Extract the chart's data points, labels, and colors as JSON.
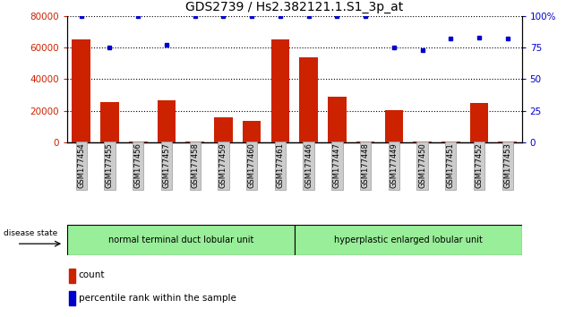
{
  "title": "GDS2739 / Hs2.382121.1.S1_3p_at",
  "samples": [
    "GSM177454",
    "GSM177455",
    "GSM177456",
    "GSM177457",
    "GSM177458",
    "GSM177459",
    "GSM177460",
    "GSM177461",
    "GSM177446",
    "GSM177447",
    "GSM177448",
    "GSM177449",
    "GSM177450",
    "GSM177451",
    "GSM177452",
    "GSM177453"
  ],
  "counts": [
    65000,
    25500,
    900,
    26500,
    900,
    16000,
    13500,
    65000,
    54000,
    29000,
    900,
    20500,
    900,
    900,
    25000,
    900
  ],
  "percentiles": [
    100,
    75,
    100,
    77,
    100,
    100,
    100,
    100,
    100,
    100,
    100,
    75,
    73,
    82,
    83,
    82
  ],
  "ylim_left": [
    0,
    80000
  ],
  "ylim_right": [
    0,
    100
  ],
  "yticks_left": [
    0,
    20000,
    40000,
    60000,
    80000
  ],
  "yticks_right": [
    0,
    25,
    50,
    75,
    100
  ],
  "ytick_labels_right": [
    "0",
    "25",
    "50",
    "75",
    "100%"
  ],
  "group1_label": "normal terminal duct lobular unit",
  "group2_label": "hyperplastic enlarged lobular unit",
  "group1_count": 8,
  "group2_count": 8,
  "bar_color": "#cc2200",
  "dot_color": "#0000cc",
  "group_bg": "#99ee99",
  "xticklabel_bg": "#cccccc",
  "title_fontsize": 10,
  "tick_fontsize": 7.5,
  "bar_label_fontsize": 6,
  "gridline_color": "#000000"
}
